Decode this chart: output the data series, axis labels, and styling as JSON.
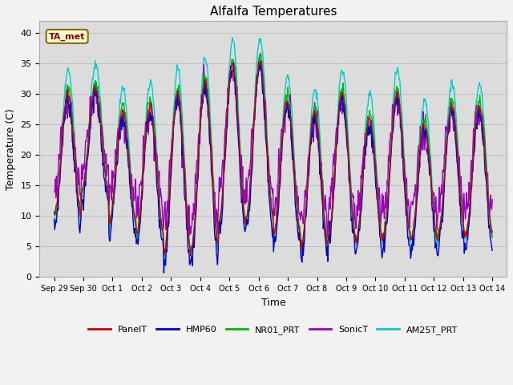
{
  "title": "Alfalfa Temperatures",
  "xlabel": "Time",
  "ylabel": "Temperature (C)",
  "ylim": [
    0,
    42
  ],
  "yticks": [
    0,
    5,
    10,
    15,
    20,
    25,
    30,
    35,
    40
  ],
  "annotation_text": "TA_met",
  "annotation_color": "#8B0000",
  "annotation_bg": "#FFFFCC",
  "series_colors": {
    "PanelT": "#CC0000",
    "HMP60": "#0000CC",
    "NR01_PRT": "#00BB00",
    "SonicT": "#9900CC",
    "AM25T_PRT": "#00CCCC"
  },
  "bg_color": "#DCDCDC",
  "n_days": 16,
  "points_per_day": 48,
  "day_mins": [
    10,
    14,
    9,
    7,
    4,
    5,
    9,
    10,
    7,
    5,
    7,
    6,
    7,
    6,
    7,
    7
  ],
  "day_maxs": [
    30,
    31,
    27,
    28,
    30,
    32,
    35,
    35,
    29,
    27,
    30,
    26,
    30,
    25,
    28,
    28
  ],
  "tick_labels": [
    "Sep 29",
    "Sep 30",
    "Oct 1",
    "Oct 2",
    "Oct 3",
    "Oct 4",
    "Oct 5",
    "Oct 6",
    "Oct 7",
    "Oct 8",
    "Oct 9",
    "Oct 10",
    "Oct 11",
    "Oct 12",
    "Oct 13",
    "Oct 14"
  ]
}
